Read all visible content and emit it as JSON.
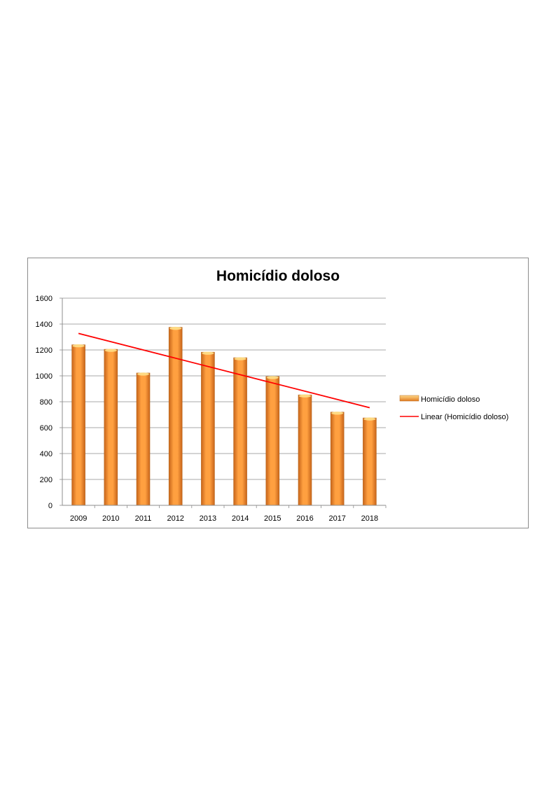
{
  "chart_data": {
    "type": "bar",
    "title": "Homicídio doloso",
    "categories": [
      "2009",
      "2010",
      "2011",
      "2012",
      "2013",
      "2014",
      "2015",
      "2016",
      "2017",
      "2018"
    ],
    "series": [
      {
        "name": "Homicídio doloso",
        "values": [
          1240,
          1205,
          1022,
          1375,
          1183,
          1140,
          995,
          853,
          720,
          675
        ],
        "color": "#f7941d"
      }
    ],
    "trendline": {
      "name": "Linear (Homicídio doloso)",
      "type": "linear",
      "color": "#ff0000"
    },
    "ylim": [
      0,
      1600
    ],
    "yticks": [
      0,
      200,
      400,
      600,
      800,
      1000,
      1200,
      1400,
      1600
    ],
    "xlabel": "",
    "ylabel": "",
    "grid": true,
    "legend_position": "right"
  }
}
